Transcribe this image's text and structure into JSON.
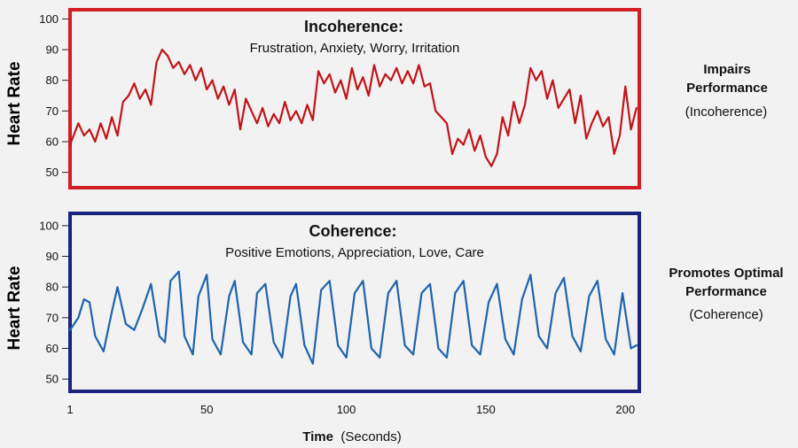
{
  "chart_data": [
    {
      "type": "line",
      "panel": "top",
      "title": "Incoherence:",
      "subtitle": "Frustration, Anxiety, Worry, Irritation",
      "ylabel": "Heart Rate",
      "ylim": [
        45,
        103
      ],
      "yticks": [
        100,
        90,
        80,
        70,
        60,
        50
      ],
      "xlim": [
        1,
        205
      ],
      "color": "#c0141a",
      "frame_color": "#d21e26",
      "side_label_bold": [
        "Impairs",
        "Performance"
      ],
      "side_label_paren": "(Incoherence)",
      "series": [
        {
          "name": "Incoherence",
          "x": [
            1,
            4,
            6,
            8,
            10,
            12,
            14,
            16,
            18,
            20,
            22,
            24,
            26,
            28,
            30,
            32,
            34,
            36,
            38,
            40,
            42,
            44,
            46,
            48,
            50,
            52,
            54,
            56,
            58,
            60,
            62,
            64,
            66,
            68,
            70,
            72,
            74,
            76,
            78,
            80,
            82,
            84,
            86,
            88,
            90,
            92,
            94,
            96,
            98,
            100,
            102,
            104,
            106,
            108,
            110,
            112,
            114,
            116,
            118,
            120,
            122,
            124,
            126,
            128,
            130,
            132,
            134,
            136,
            138,
            140,
            142,
            144,
            146,
            148,
            150,
            152,
            154,
            156,
            158,
            160,
            162,
            164,
            166,
            168,
            170,
            172,
            174,
            176,
            178,
            180,
            182,
            184,
            186,
            188,
            190,
            192,
            194,
            196,
            198,
            200,
            202,
            204
          ],
          "values": [
            59,
            66,
            62,
            64,
            60,
            66,
            61,
            68,
            62,
            73,
            75,
            79,
            74,
            77,
            72,
            86,
            90,
            88,
            84,
            86,
            82,
            85,
            80,
            84,
            77,
            80,
            74,
            78,
            72,
            77,
            64,
            74,
            70,
            66,
            71,
            65,
            69,
            66,
            73,
            67,
            70,
            66,
            72,
            67,
            83,
            79,
            82,
            76,
            80,
            74,
            84,
            77,
            81,
            75,
            85,
            78,
            82,
            80,
            84,
            79,
            83,
            79,
            85,
            78,
            79,
            70,
            68,
            66,
            56,
            61,
            59,
            64,
            57,
            62,
            55,
            52,
            56,
            68,
            62,
            73,
            66,
            72,
            84,
            80,
            83,
            74,
            80,
            71,
            74,
            77,
            66,
            75,
            61,
            66,
            70,
            65,
            68,
            56,
            62,
            78,
            64,
            71
          ]
        }
      ]
    },
    {
      "type": "line",
      "panel": "bottom",
      "title": "Coherence:",
      "subtitle": "Positive Emotions, Appreciation, Love, Care",
      "ylabel": "Heart Rate",
      "ylim": [
        46,
        104
      ],
      "yticks": [
        100,
        90,
        80,
        70,
        60,
        50
      ],
      "xlim": [
        1,
        205
      ],
      "xticks": [
        1,
        50,
        100,
        150,
        200
      ],
      "xlabel_bold": "Time",
      "xlabel_rest": "(Seconds)",
      "color": "#1f63ae",
      "frame_color": "#1a237e",
      "side_label_bold": [
        "Promotes Optimal",
        "Performance"
      ],
      "side_label_paren": "(Coherence)",
      "series": [
        {
          "name": "Coherence",
          "x": [
            1,
            4,
            6,
            8,
            10,
            13,
            16,
            18,
            21,
            24,
            27,
            30,
            33,
            35,
            37,
            40,
            42,
            45,
            47,
            50,
            52,
            55,
            58,
            60,
            63,
            66,
            68,
            71,
            74,
            77,
            80,
            82,
            85,
            88,
            91,
            94,
            97,
            100,
            103,
            106,
            109,
            112,
            115,
            118,
            121,
            124,
            127,
            130,
            133,
            136,
            139,
            142,
            145,
            148,
            151,
            154,
            157,
            160,
            163,
            166,
            169,
            172,
            175,
            178,
            181,
            184,
            187,
            190,
            193,
            196,
            199,
            202,
            204
          ],
          "values": [
            66,
            70,
            76,
            75,
            64,
            59,
            72,
            80,
            68,
            66,
            73,
            81,
            64,
            62,
            82,
            85,
            64,
            58,
            77,
            84,
            63,
            58,
            77,
            82,
            62,
            58,
            78,
            81,
            62,
            57,
            77,
            81,
            61,
            55,
            79,
            82,
            61,
            57,
            78,
            82,
            60,
            57,
            78,
            82,
            61,
            58,
            78,
            81,
            60,
            57,
            78,
            82,
            61,
            58,
            75,
            81,
            63,
            58,
            76,
            84,
            64,
            60,
            78,
            83,
            64,
            59,
            77,
            82,
            63,
            58,
            78,
            60,
            61
          ]
        }
      ]
    }
  ]
}
